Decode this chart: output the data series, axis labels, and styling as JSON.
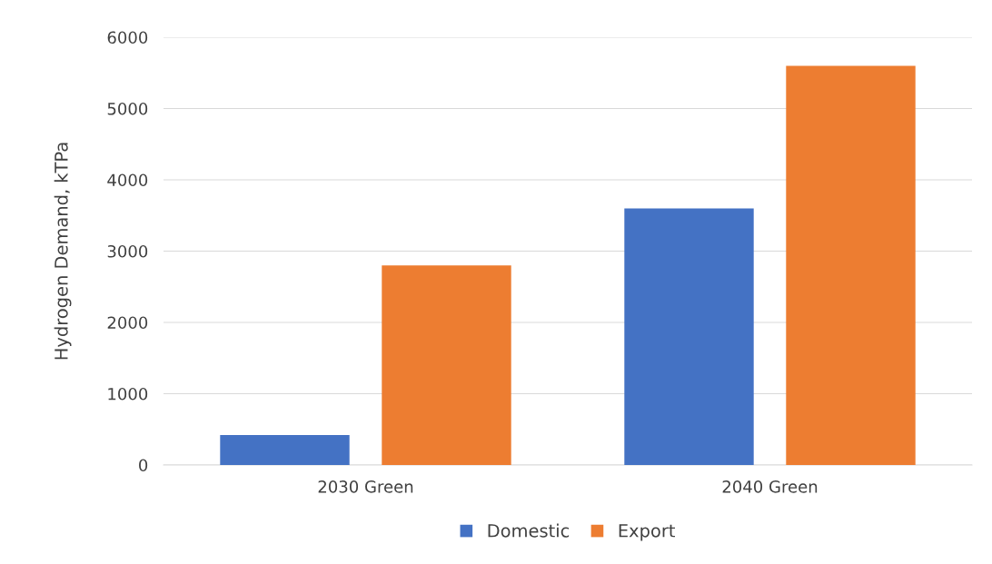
{
  "chart_data": {
    "type": "bar",
    "ylabel": "Hydrogen Demand, kTPa",
    "categories": [
      "2030 Green",
      "2040 Green"
    ],
    "series": [
      {
        "name": "Domestic",
        "color": "#4472c4",
        "values": [
          420,
          3600
        ]
      },
      {
        "name": "Export",
        "color": "#ed7d31",
        "values": [
          2800,
          5600
        ]
      }
    ],
    "ylim": [
      0,
      6000
    ],
    "yticks": [
      0,
      1000,
      2000,
      3000,
      4000,
      5000,
      6000
    ],
    "grid": "y",
    "legend": "bottom"
  }
}
